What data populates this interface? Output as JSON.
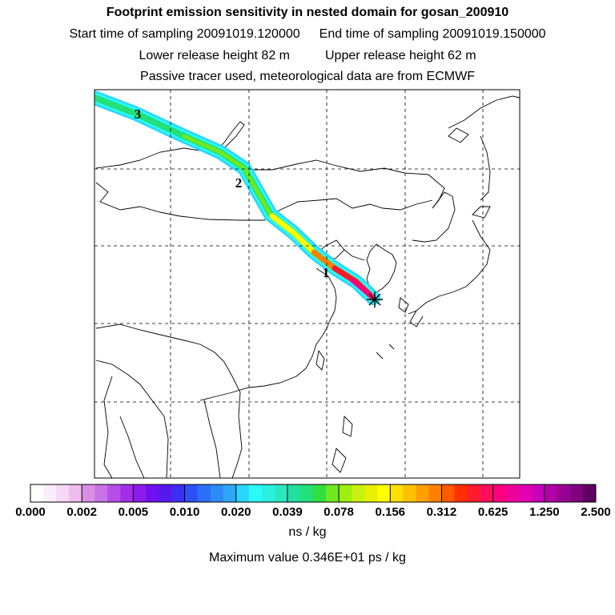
{
  "header": {
    "title": "Footprint emission sensitivity in nested domain for gosan_200910",
    "start_sampling": "Start time of sampling 20091019.120000",
    "end_sampling": "End time of sampling 20091019.150000",
    "lower_release": "Lower release height   82 m",
    "upper_release": "Upper release height   62 m",
    "tracer_note": "Passive tracer used, meteorological data are from ECMWF"
  },
  "map": {
    "day_markers": [
      "1",
      "2",
      "3"
    ],
    "receptor_symbol": "receptor-star"
  },
  "colorbar": {
    "labels": [
      "0.000",
      "0.002",
      "0.005",
      "0.010",
      "0.020",
      "0.039",
      "0.078",
      "0.156",
      "0.312",
      "0.625",
      "1.250",
      "2.500"
    ],
    "colors": [
      "#ffffff",
      "#fbeefb",
      "#f6d8f6",
      "#eebdee",
      "#d98ee6",
      "#c873e6",
      "#b54de8",
      "#a22ee9",
      "#8e1aeb",
      "#6f10ee",
      "#5519f0",
      "#3d2ff2",
      "#2c50f5",
      "#2a6ff7",
      "#2c8bf9",
      "#2ca7fb",
      "#2ad6fc",
      "#2afafa",
      "#2af1de",
      "#2ae8c0",
      "#22e0a0",
      "#22e07a",
      "#30e040",
      "#70e820",
      "#a0ee10",
      "#c8f010",
      "#e6f000",
      "#ffff00",
      "#ffe000",
      "#ffc000",
      "#ffa000",
      "#ff8000",
      "#ff5a00",
      "#ff3000",
      "#ff1a2e",
      "#ff0e5a",
      "#ff0080",
      "#f0009a",
      "#e200b0",
      "#c800b8",
      "#b000a6",
      "#980094",
      "#800080",
      "#5e0060"
    ],
    "units": "ns / kg"
  },
  "footer": {
    "max_value": "Maximum value  0.346E+01 ps / kg"
  }
}
